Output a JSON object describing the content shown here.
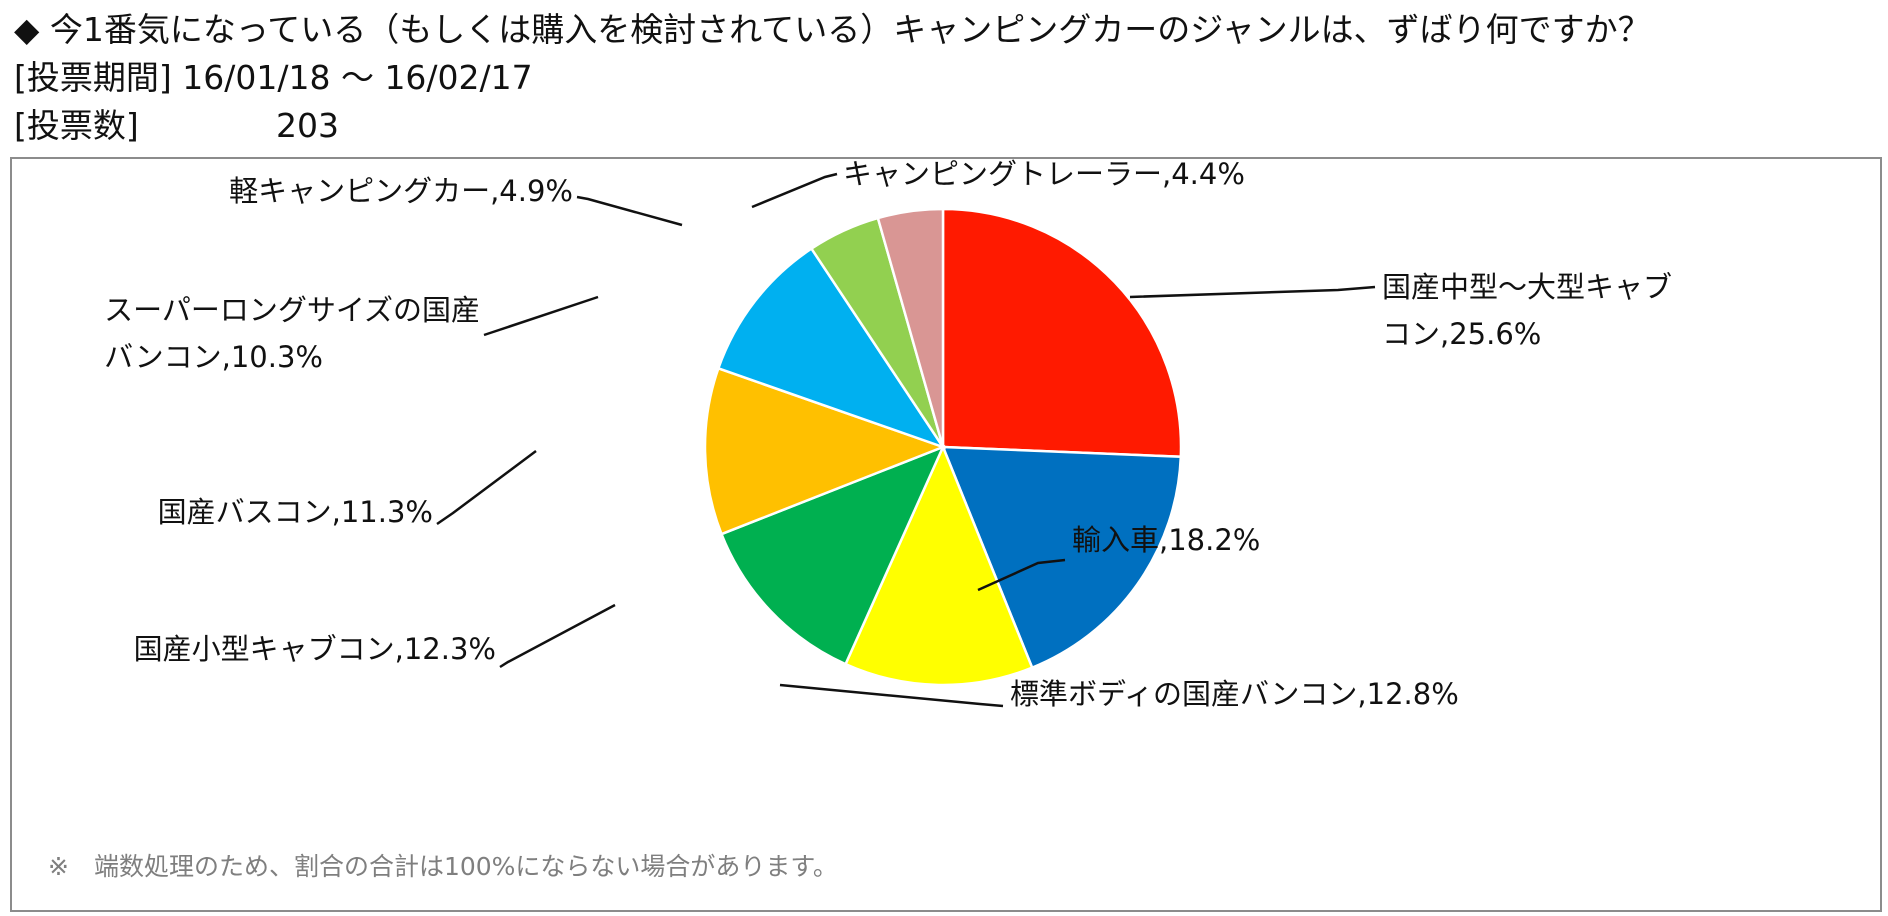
{
  "header": {
    "question": "◆ 今1番気になっている（もしくは購入を検討されている）キャンピングカーのジャンルは、ずばり何ですか？",
    "period_label": "[投票期間]",
    "period_value": "16/01/18 ～ 16/02/17",
    "count_label": "[投票数]",
    "count_value": "203"
  },
  "chart_data": {
    "type": "pie",
    "start_angle": "12 o'clock",
    "direction": "clockwise",
    "slices": [
      {
        "label": "国産中型～大型キャブコン",
        "label_lines": [
          "国産中型～大型キャブ",
          "コン,25.6%"
        ],
        "value": 25.6,
        "color": "#ff1a00"
      },
      {
        "label": "輸入車",
        "label_lines": [
          "輸入車,18.2%"
        ],
        "value": 18.2,
        "color": "#0070c0"
      },
      {
        "label": "標準ボディの国産バンコン",
        "label_lines": [
          "標準ボディの国産バンコン,12.8%"
        ],
        "value": 12.8,
        "color": "#ffff00"
      },
      {
        "label": "国産小型キャブコン",
        "label_lines": [
          "国産小型キャブコン,12.3%"
        ],
        "value": 12.3,
        "color": "#00b050"
      },
      {
        "label": "国産バスコン",
        "label_lines": [
          "国産バスコン,11.3%"
        ],
        "value": 11.3,
        "color": "#ffc000"
      },
      {
        "label": "スーパーロングサイズの国産バンコン",
        "label_lines": [
          "スーパーロングサイズの国産",
          "バンコン,10.3%"
        ],
        "value": 10.3,
        "color": "#00b0f0"
      },
      {
        "label": "軽キャンピングカー",
        "label_lines": [
          "軽キャンピングカー,4.9%"
        ],
        "value": 4.9,
        "color": "#92d050"
      },
      {
        "label": "キャンピングトレーラー",
        "label_lines": [
          "キャンピングトレーラー,4.4%"
        ],
        "value": 4.4,
        "color": "#d99694"
      }
    ],
    "note": "※　端数処理のため、割合の合計は100%にならない場合があります。"
  }
}
